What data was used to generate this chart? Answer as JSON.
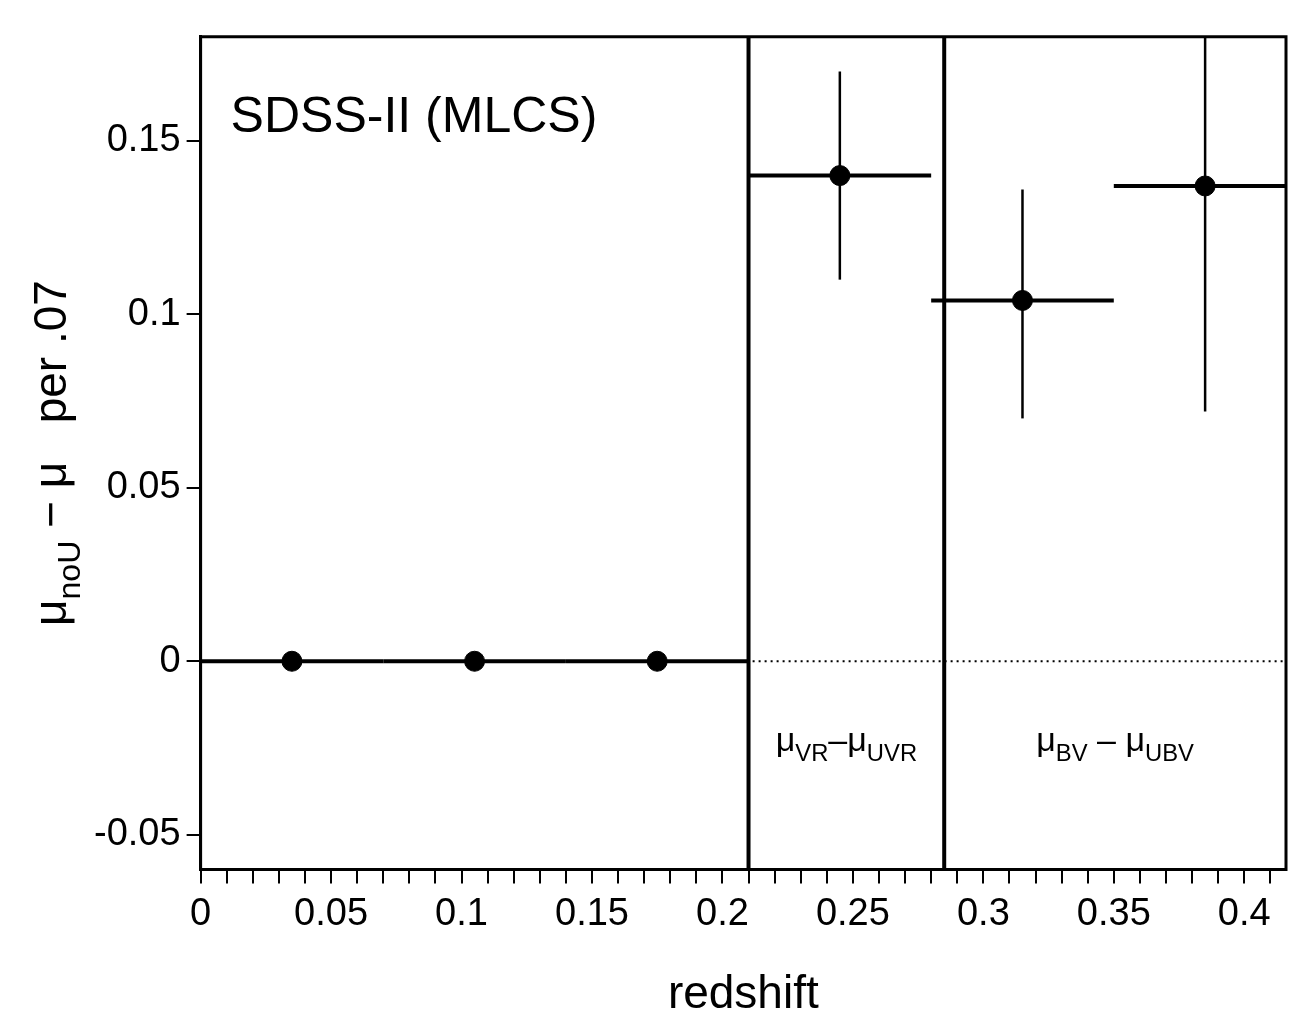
{
  "chart_data": {
    "type": "scatter",
    "xlabel": "redshift",
    "ylabel": "μ$_{noU}$ − μ   per .07",
    "x": [
      0.035,
      0.105,
      0.175,
      0.245,
      0.315,
      0.385
    ],
    "series": [
      {
        "color": "#000000",
        "values": [
          0,
          0,
          0,
          0.14,
          0.104,
          0.137
        ],
        "errors": [
          null,
          null,
          null,
          [
            0.11,
            0.17
          ],
          [
            0.07,
            0.136
          ],
          [
            0.072,
            0.18
          ]
        ],
        "xerrors": [
          0.035,
          0.035,
          0.035,
          0.035,
          0.035,
          [
            0.35,
            0.416
          ]
        ]
      }
    ],
    "xlim": [
      0,
      0.416
    ],
    "xticks": [
      0,
      {
        "value": 0.01,
        "label": null
      },
      {
        "value": 0.02,
        "label": null
      },
      {
        "value": 0.03,
        "label": null
      },
      {
        "value": 0.04,
        "label": null
      },
      0.05,
      {
        "value": 0.06,
        "label": null
      },
      {
        "value": 0.07,
        "label": null
      },
      {
        "value": 0.08,
        "label": null
      },
      {
        "value": 0.09,
        "label": null
      },
      0.1,
      {
        "value": 0.11,
        "label": null
      },
      {
        "value": 0.12,
        "label": null
      },
      {
        "value": 0.13,
        "label": null
      },
      {
        "value": 0.14,
        "label": null
      },
      0.15,
      {
        "value": 0.16,
        "label": null
      },
      {
        "value": 0.17,
        "label": null
      },
      {
        "value": 0.18,
        "label": null
      },
      {
        "value": 0.19,
        "label": null
      },
      0.2,
      {
        "value": 0.21,
        "label": null
      },
      {
        "value": 0.22,
        "label": null
      },
      {
        "value": 0.23,
        "label": null
      },
      {
        "value": 0.24,
        "label": null
      },
      0.25,
      {
        "value": 0.26,
        "label": null
      },
      {
        "value": 0.27,
        "label": null
      },
      {
        "value": 0.28,
        "label": null
      },
      {
        "value": 0.29,
        "label": null
      },
      0.3,
      {
        "value": 0.31,
        "label": null
      },
      {
        "value": 0.32,
        "label": null
      },
      {
        "value": 0.33,
        "label": null
      },
      {
        "value": 0.34,
        "label": null
      },
      0.35,
      {
        "value": 0.36,
        "label": null
      },
      {
        "value": 0.37,
        "label": null
      },
      {
        "value": 0.38,
        "label": null
      },
      {
        "value": 0.39,
        "label": null
      },
      0.4,
      {
        "value": 0.41,
        "label": null
      }
    ],
    "ylim": [
      -0.06,
      0.18
    ],
    "yticks": [
      -0.05,
      0,
      0.05,
      0.1,
      0.15
    ],
    "ref_lines": [
      {
        "axis": "x",
        "value": 0.21,
        "color": "#000000",
        "line_style": "solid"
      },
      {
        "axis": "x",
        "value": 0.285,
        "color": "#000000",
        "line_style": "solid"
      },
      {
        "axis": "y",
        "value": 0,
        "color": "#000000",
        "line_style": "dotted"
      }
    ],
    "annotations": [
      "SDSS-II (MLCS)",
      "μ$_{VR}$–μ$_{UVR}$",
      "μ$_{BV}$ – μ$_{UBV}$"
    ],
    "marker": "circle",
    "grid": false,
    "legend": false
  }
}
